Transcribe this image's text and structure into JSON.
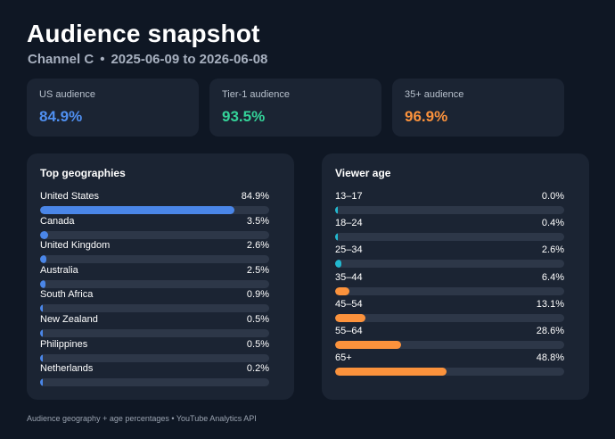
{
  "header": {
    "title": "Audience snapshot",
    "channel": "Channel C",
    "separator": "•",
    "date_range": "2025-06-09 to 2026-06-08"
  },
  "kpis": [
    {
      "label": "US audience",
      "value": "84.9%",
      "color": "#4f8ff0"
    },
    {
      "label": "Tier-1 audience",
      "value": "93.5%",
      "color": "#34d399"
    },
    {
      "label": "35+ audience",
      "value": "96.9%",
      "color": "#fb923c"
    }
  ],
  "geo": {
    "title": "Top geographies",
    "bar_color": "#4a86e8",
    "items": [
      {
        "name": "United States",
        "pct": "84.9%",
        "value": 84.9
      },
      {
        "name": "Canada",
        "pct": "3.5%",
        "value": 3.5
      },
      {
        "name": "United Kingdom",
        "pct": "2.6%",
        "value": 2.6
      },
      {
        "name": "Australia",
        "pct": "2.5%",
        "value": 2.5
      },
      {
        "name": "South Africa",
        "pct": "0.9%",
        "value": 0.9
      },
      {
        "name": "New Zealand",
        "pct": "0.5%",
        "value": 0.5
      },
      {
        "name": "Philippines",
        "pct": "0.5%",
        "value": 0.5
      },
      {
        "name": "Netherlands",
        "pct": "0.2%",
        "value": 0.2
      }
    ]
  },
  "age": {
    "title": "Viewer age",
    "items": [
      {
        "name": "13–17",
        "pct": "0.0%",
        "value": 0.0,
        "color": "#22b8cf"
      },
      {
        "name": "18–24",
        "pct": "0.4%",
        "value": 0.4,
        "color": "#22b8cf"
      },
      {
        "name": "25–34",
        "pct": "2.6%",
        "value": 2.6,
        "color": "#22b8cf"
      },
      {
        "name": "35–44",
        "pct": "6.4%",
        "value": 6.4,
        "color": "#fb923c"
      },
      {
        "name": "45–54",
        "pct": "13.1%",
        "value": 13.1,
        "color": "#fb923c"
      },
      {
        "name": "55–64",
        "pct": "28.6%",
        "value": 28.6,
        "color": "#fb923c"
      },
      {
        "name": "65+",
        "pct": "48.8%",
        "value": 48.8,
        "color": "#fb923c"
      }
    ]
  },
  "footer": "Audience geography + age percentages • YouTube Analytics API"
}
